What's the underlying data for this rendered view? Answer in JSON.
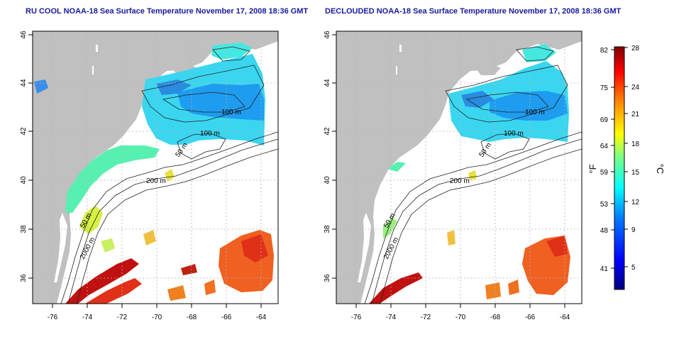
{
  "panels": [
    {
      "title": "RU COOL NOAA-18 Sea Surface Temperature November 17, 2008 18:36 GMT",
      "x_ticks": [
        "-76",
        "-74",
        "-72",
        "-70",
        "-68",
        "-66",
        "-64"
      ],
      "y_ticks": [
        "46",
        "44",
        "42",
        "40",
        "38",
        "36"
      ],
      "isobath_labels": [
        "100 m",
        "100 m",
        "50 m",
        "200 m",
        "50 m",
        "2000 m"
      ]
    },
    {
      "title": "DECLOUDED NOAA-18 Sea Surface Temperature November 17, 2008 18:36 GMT",
      "x_ticks": [
        "-76",
        "-74",
        "-72",
        "-70",
        "-68",
        "-66",
        "-64"
      ],
      "y_ticks": [
        "46",
        "44",
        "42",
        "40",
        "38",
        "36"
      ],
      "isobath_labels": [
        "100 m",
        "100 m",
        "50 m",
        "200 m",
        "50 m",
        "2000 m"
      ]
    }
  ],
  "colorbar": {
    "fahrenheit_label": "°F",
    "celsius_label": "°C",
    "fahrenheit_ticks": [
      "82",
      "75",
      "69",
      "64",
      "59",
      "53",
      "48",
      "41"
    ],
    "celsius_ticks": [
      "28",
      "24",
      "21",
      "18",
      "15",
      "12",
      "9",
      "5"
    ],
    "colors": [
      "#00007f",
      "#0000ff",
      "#0080ff",
      "#00ffff",
      "#80ff80",
      "#ffff00",
      "#ff8000",
      "#ff0000",
      "#7f0000"
    ]
  },
  "colors": {
    "land": "#c0c0c0",
    "ocean_nodata": "#ffffff",
    "grid": "#b4b4b4",
    "title": "#1a1a9c"
  }
}
